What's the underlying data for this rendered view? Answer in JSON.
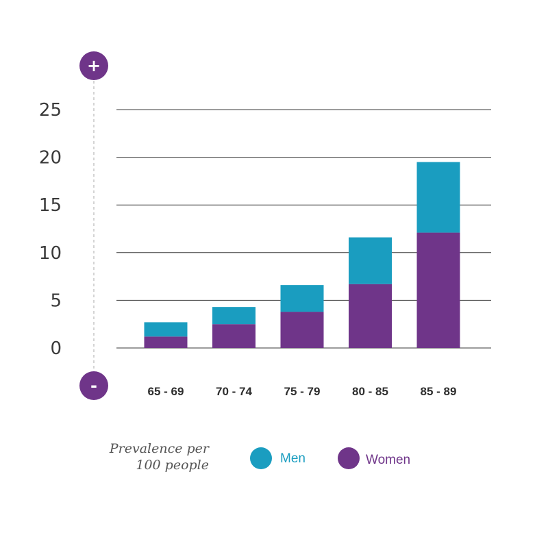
{
  "chart_data": {
    "type": "bar",
    "stacked": true,
    "categories": [
      "65 - 69",
      "70 - 74",
      "75 - 79",
      "80 - 85",
      "85 - 89"
    ],
    "series": [
      {
        "name": "Women",
        "values": [
          1.2,
          2.5,
          3.8,
          6.7,
          12.1
        ],
        "color": "#6f3589"
      },
      {
        "name": "Men",
        "values": [
          1.5,
          1.8,
          2.8,
          4.9,
          7.4
        ],
        "color": "#1a9dc0"
      }
    ],
    "yticks": [
      0,
      5,
      10,
      15,
      20,
      25
    ],
    "ylim": [
      0,
      25
    ],
    "grid": true,
    "legend": "bottom"
  },
  "scale_indicators": {
    "top": "+",
    "bottom": "-"
  },
  "footnote": {
    "line1": "Prevalence per",
    "line2": "100 people"
  },
  "legend": {
    "men": "Men",
    "women": "Women"
  },
  "colors": {
    "men": "#1a9dc0",
    "women": "#6f3589",
    "grid": "#3a3a3a",
    "axis_dash": "#aaaaaa"
  }
}
